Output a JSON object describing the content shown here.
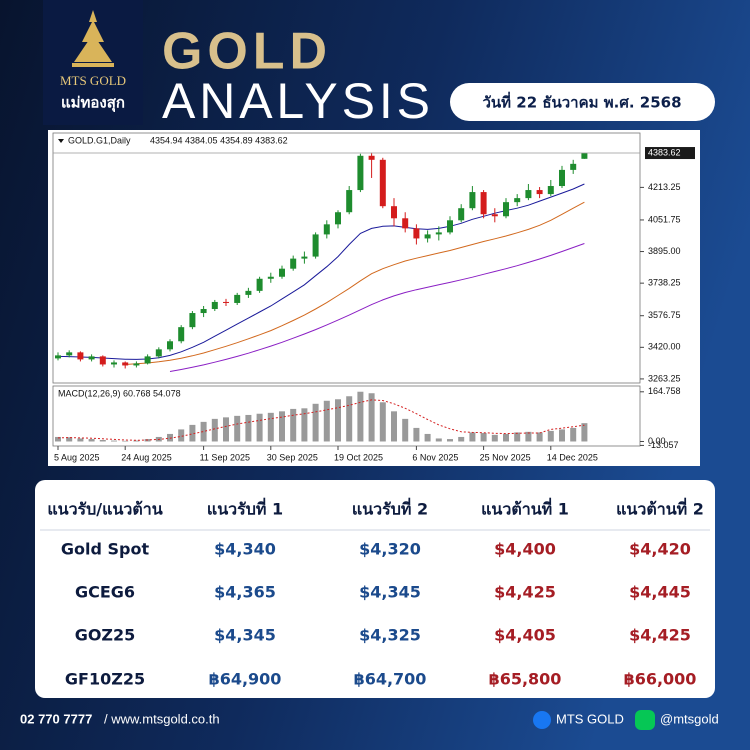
{
  "header": {
    "brand": "MTS GOLD",
    "brand_thai": "แม่ทองสุก",
    "title_line1": "GOLD",
    "title_line2": "ANALYSIS",
    "date": "วันที่ 22 ธันวาคม พ.ศ. 2568"
  },
  "chart_data": {
    "type": "candlestick",
    "title": "GOLD.G1,Daily",
    "quote": "4354.94 4384.05 4354.89 4383.62",
    "categories": [
      "5 Aug 2025",
      null,
      null,
      null,
      null,
      null,
      "24 Aug 2025",
      null,
      null,
      null,
      null,
      null,
      null,
      "11 Sep 2025",
      null,
      null,
      null,
      null,
      null,
      "30 Sep 2025",
      null,
      null,
      null,
      null,
      null,
      "19 Oct 2025",
      null,
      null,
      null,
      null,
      null,
      null,
      "6 Nov 2025",
      null,
      null,
      null,
      null,
      null,
      "25 Nov 2025",
      null,
      null,
      null,
      null,
      null,
      "14 Dec 2025",
      null,
      null,
      null
    ],
    "open": [
      3365,
      3380,
      3395,
      3360,
      3375,
      3335,
      3345,
      3330,
      3340,
      3375,
      3410,
      3450,
      3520,
      3590,
      3610,
      3645,
      3640,
      3680,
      3700,
      3760,
      3770,
      3810,
      3860,
      3870,
      3980,
      4030,
      4090,
      4200,
      4370,
      4350,
      4120,
      4060,
      4010,
      3960,
      3980,
      3990,
      4050,
      4110,
      4190,
      4080,
      4070,
      4140,
      4160,
      4200,
      4180,
      4220,
      4300,
      4354.94
    ],
    "high": [
      3395,
      3405,
      3400,
      3385,
      3380,
      3355,
      3350,
      3350,
      3385,
      3420,
      3460,
      3530,
      3600,
      3625,
      3655,
      3660,
      3690,
      3715,
      3770,
      3790,
      3825,
      3875,
      3895,
      3990,
      4050,
      4100,
      4220,
      4380,
      4385,
      4360,
      4160,
      4090,
      4030,
      4000,
      4020,
      4070,
      4130,
      4220,
      4200,
      4110,
      4160,
      4180,
      4230,
      4215,
      4250,
      4320,
      4350,
      4384.05
    ],
    "low": [
      3355,
      3370,
      3350,
      3350,
      3325,
      3320,
      3315,
      3320,
      3335,
      3365,
      3400,
      3440,
      3510,
      3570,
      3600,
      3625,
      3630,
      3665,
      3690,
      3740,
      3760,
      3800,
      3835,
      3860,
      3960,
      4010,
      4080,
      4190,
      4260,
      4110,
      4020,
      3990,
      3930,
      3940,
      3950,
      3980,
      4040,
      4100,
      4060,
      4040,
      4060,
      4120,
      4150,
      4160,
      4170,
      4210,
      4280,
      4354.89
    ],
    "close": [
      3380,
      3395,
      3360,
      3375,
      3335,
      3345,
      3330,
      3340,
      3375,
      3410,
      3450,
      3520,
      3590,
      3610,
      3645,
      3640,
      3680,
      3700,
      3760,
      3770,
      3810,
      3860,
      3870,
      3980,
      4030,
      4090,
      4200,
      4370,
      4350,
      4120,
      4060,
      4010,
      3960,
      3980,
      3990,
      4050,
      4110,
      4190,
      4080,
      4070,
      4140,
      4160,
      4200,
      4180,
      4220,
      4300,
      4330,
      4383.62
    ],
    "up_color": "#1e8c2e",
    "down_color": "#d41c1c",
    "series": [
      {
        "color": "#1a1a9a",
        "values": [
          3375,
          3374,
          3372,
          3370,
          3367,
          3364,
          3361,
          3360,
          3362,
          3368,
          3380,
          3398,
          3420,
          3445,
          3475,
          3505,
          3535,
          3565,
          3595,
          3625,
          3660,
          3695,
          3730,
          3775,
          3820,
          3870,
          3930,
          3985,
          4010,
          4020,
          4022,
          4015,
          4008,
          4005,
          4010,
          4020,
          4035,
          4055,
          4070,
          4085,
          4098,
          4110,
          4125,
          4145,
          4165,
          4185,
          4205,
          4230
        ]
      },
      {
        "color": "#d2691e",
        "values": [
          null,
          null,
          null,
          null,
          null,
          null,
          3335,
          3338,
          3342,
          3348,
          3356,
          3366,
          3378,
          3392,
          3408,
          3425,
          3443,
          3462,
          3482,
          3503,
          3527,
          3553,
          3580,
          3610,
          3642,
          3677,
          3712,
          3750,
          3785,
          3810,
          3830,
          3848,
          3862,
          3875,
          3888,
          3900,
          3915,
          3930,
          3945,
          3958,
          3972,
          3988,
          4005,
          4025,
          4050,
          4080,
          4110,
          4140
        ]
      },
      {
        "color": "#8a1fc4",
        "values": [
          null,
          null,
          null,
          null,
          null,
          null,
          null,
          null,
          null,
          null,
          3300,
          3310,
          3321,
          3333,
          3346,
          3360,
          3375,
          3391,
          3408,
          3426,
          3445,
          3465,
          3486,
          3508,
          3531,
          3555,
          3580,
          3606,
          3632,
          3655,
          3675,
          3692,
          3706,
          3718,
          3730,
          3742,
          3755,
          3768,
          3782,
          3796,
          3810,
          3825,
          3841,
          3858,
          3876,
          3895,
          3915,
          3935
        ]
      }
    ],
    "ylim": [
      3243,
      4483
    ],
    "yticks": [
      4213.25,
      4051.75,
      {
        "value": 3895,
        "label": "3895.00"
      },
      3738.25,
      3576.75,
      {
        "value": 3420,
        "label": "3420.00"
      },
      3263.25
    ],
    "macd": {
      "title": "MACD(12,26,9) 60.768 54.078",
      "color": "#9a9a9a",
      "signal_color": "#d42020",
      "histogram": [
        15,
        14,
        10,
        8,
        5,
        3,
        2,
        3,
        8,
        15,
        25,
        40,
        55,
        65,
        75,
        80,
        85,
        88,
        92,
        95,
        100,
        108,
        110,
        125,
        135,
        140,
        150,
        165,
        160,
        130,
        100,
        75,
        45,
        25,
        10,
        8,
        15,
        30,
        28,
        22,
        25,
        30,
        32,
        30,
        35,
        40,
        45,
        60.768
      ],
      "signal": [
        12,
        13,
        12,
        11,
        9,
        7,
        5,
        4,
        5,
        7,
        11,
        17,
        25,
        33,
        42,
        50,
        58,
        64,
        70,
        76,
        81,
        87,
        92,
        98,
        105,
        112,
        120,
        130,
        138,
        136,
        125,
        110,
        92,
        73,
        55,
        42,
        32,
        30,
        29,
        27,
        26,
        27,
        28,
        28,
        40,
        44,
        49,
        54.078
      ],
      "ylim": [
        -15,
        184
      ],
      "yticks": [
        164.758,
        -13.057,
        {
          "value": 0,
          "label": "0.00"
        }
      ]
    }
  },
  "table": {
    "header": [
      "แนวรับ/แนวต้าน",
      "แนวรับที่ 1",
      "แนวรับที่ 2",
      "แนวต้านที่ 1",
      "แนวต้านที่ 2"
    ],
    "rows": [
      [
        "Gold Spot",
        "$4,340",
        "$4,320",
        "$4,400",
        "$4,420"
      ],
      [
        "GCEG6",
        "$4,365",
        "$4,345",
        "$4,425",
        "$4,445"
      ],
      [
        "GOZ25",
        "$4,345",
        "$4,325",
        "$4,405",
        "$4,425"
      ],
      [
        "GF10Z25",
        "฿64,900",
        "฿64,700",
        "฿65,800",
        "฿66,000"
      ]
    ]
  },
  "footer": {
    "phone": "02 770 7777",
    "website": "/ www.mtsgold.co.th",
    "facebook": "MTS GOLD",
    "line": "@mtsgold"
  }
}
